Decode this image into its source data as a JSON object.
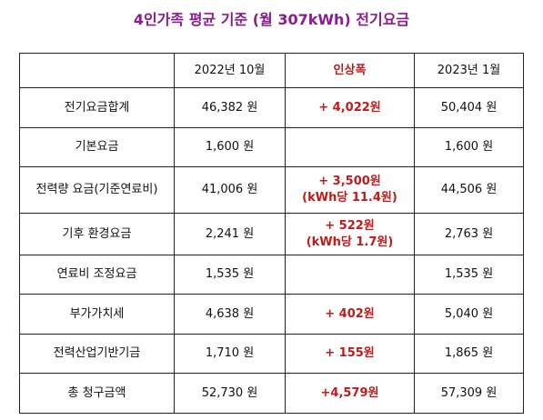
{
  "title": "4인가족 평균 기준 (월 307kWh) 전기요금",
  "table": {
    "headers": [
      "",
      "2022년 10월",
      "인상폭",
      "2023년 1월"
    ],
    "rows": [
      {
        "label": "전기요금합계",
        "oct2022": "46,382 원",
        "increase": [
          "+ 4,022원"
        ],
        "jan2023": "50,404 원"
      },
      {
        "label": "기본요금",
        "oct2022": "1,600 원",
        "increase": [],
        "jan2023": "1,600 원"
      },
      {
        "label": "전력량 요금(기준연료비)",
        "oct2022": "41,006 원",
        "increase": [
          "+ 3,500원",
          "(kWh당 11.4원)"
        ],
        "jan2023": "44,506 원"
      },
      {
        "label": "기후 환경요금",
        "oct2022": "2,241 원",
        "increase": [
          "+ 522원",
          "(kWh당 1.7원)"
        ],
        "jan2023": "2,763 원"
      },
      {
        "label": "연료비 조정요금",
        "oct2022": "1,535 원",
        "increase": [],
        "jan2023": "1,535 원"
      },
      {
        "label": "부가가치세",
        "oct2022": "4,638 원",
        "increase": [
          "+ 402원"
        ],
        "jan2023": "5,040 원"
      },
      {
        "label": "전력산업기반기금",
        "oct2022": "1,710 원",
        "increase": [
          "+ 155원"
        ],
        "jan2023": "1,865 원"
      },
      {
        "label": "총 청구금액",
        "oct2022": "52,730 원",
        "increase": [
          "+4,579원"
        ],
        "jan2023": "57,309 원"
      }
    ]
  },
  "colors": {
    "title": "#8a1c8d",
    "increase": "#c01a1a",
    "border": "#222222"
  }
}
